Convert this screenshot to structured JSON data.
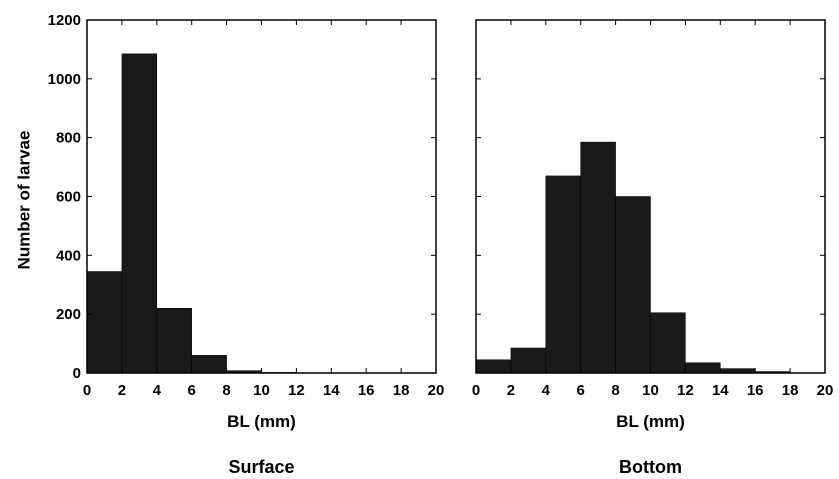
{
  "chart_data": [
    {
      "type": "bar",
      "panel_title": "Surface",
      "xlabel": "BL (mm)",
      "ylabel": "Number of larvae",
      "bin_edges": [
        0,
        2,
        4,
        6,
        8,
        10,
        12,
        14,
        16,
        18,
        20
      ],
      "values": [
        345,
        1085,
        220,
        60,
        8,
        2,
        1,
        0,
        0,
        0
      ],
      "xlim": [
        0,
        20
      ],
      "ylim": [
        0,
        1200
      ],
      "xticks": [
        "0",
        "2",
        "4",
        "6",
        "8",
        "10",
        "12",
        "14",
        "16",
        "18",
        "20"
      ],
      "yticks": [
        "0",
        "200",
        "400",
        "600",
        "800",
        "1000",
        "1200"
      ],
      "bar_color": "#1a1a1a",
      "grid": false
    },
    {
      "type": "bar",
      "panel_title": "Bottom",
      "xlabel": "BL (mm)",
      "ylabel": "",
      "bin_edges": [
        0,
        2,
        4,
        6,
        8,
        10,
        12,
        14,
        16,
        18,
        20
      ],
      "values": [
        45,
        85,
        670,
        785,
        600,
        205,
        35,
        15,
        5,
        0
      ],
      "xlim": [
        0,
        20
      ],
      "ylim": [
        0,
        1200
      ],
      "xticks": [
        "0",
        "2",
        "4",
        "6",
        "8",
        "10",
        "12",
        "14",
        "16",
        "18",
        "20"
      ],
      "yticks": [],
      "bar_color": "#1a1a1a",
      "grid": false
    }
  ]
}
